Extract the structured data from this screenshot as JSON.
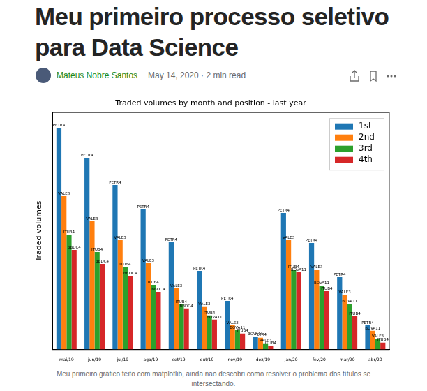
{
  "title": "Meu primeiro processo seletivo para Data Science",
  "author": "Mateus Nobre Santos",
  "meta": "May 14, 2020 · 2 min read",
  "caption": "Meu primeiro gráfico feito com matplotlib, ainda não descobri como resolver o problema dos títulos se intersectando.",
  "chart_data": {
    "type": "bar",
    "title": "Traded volumes by month and position - last year",
    "y_label": "Traded volumes",
    "categories": [
      "mai/19",
      "jun/19",
      "jul/19",
      "ago/19",
      "set/19",
      "out/19",
      "nov/19",
      "dez/19",
      "jan/20",
      "fev/20",
      "mar/20",
      "abr/20"
    ],
    "series": [
      {
        "name": "1st",
        "color": "#1f77b4",
        "values": [
          318,
          275,
          236,
          201,
          154,
          113,
          70,
          18,
          196,
          153,
          104,
          35
        ],
        "bar_labels": [
          "PETR4",
          "PETR4",
          "PETR4",
          "PETR4",
          "PETR4",
          "PETR4",
          "PETR4",
          "BOVA11",
          "PETR4",
          "PETR4",
          "PETR4",
          "PETR4"
        ]
      },
      {
        "name": "2nd",
        "color": "#ff7f0e",
        "values": [
          220,
          184,
          157,
          124,
          88,
          62,
          35,
          17,
          157,
          115,
          79,
          27
        ],
        "bar_labels": [
          "VALE3",
          "VALE3",
          "VALE3",
          "VALE3",
          "VALE3",
          "VALE3",
          "VALE3",
          "PETR4",
          "VALE3",
          "VALE3",
          "VALE3",
          "BOVA11"
        ]
      },
      {
        "name": "3rd",
        "color": "#2ca02c",
        "values": [
          165,
          140,
          119,
          93,
          65,
          49,
          28,
          9,
          115,
          92,
          66,
          15
        ],
        "bar_labels": [
          "ITUB4",
          "ITUB4",
          "ITUB4",
          "ITUB4",
          "ITUB4",
          "ITUB4",
          "BOVA11",
          "VALE3",
          "ITUB4",
          "BOVA11",
          "BOVA11",
          "VALE3"
        ]
      },
      {
        "name": "4th",
        "color": "#d62728",
        "values": [
          143,
          123,
          106,
          83,
          59,
          43,
          23,
          5,
          111,
          84,
          48,
          10
        ],
        "bar_labels": [
          "BBDC4",
          "BBDC4",
          "BBDC4",
          "BBDC4",
          "BBDC4",
          "BOVA11",
          "ITUB4",
          "ITUB4",
          "BOVA11",
          "ITUB4",
          "ITUB4",
          "ITUB4"
        ]
      }
    ],
    "ylim": [
      0,
      340
    ],
    "grid": false,
    "legend": "upper right",
    "tick_labels": "x"
  }
}
